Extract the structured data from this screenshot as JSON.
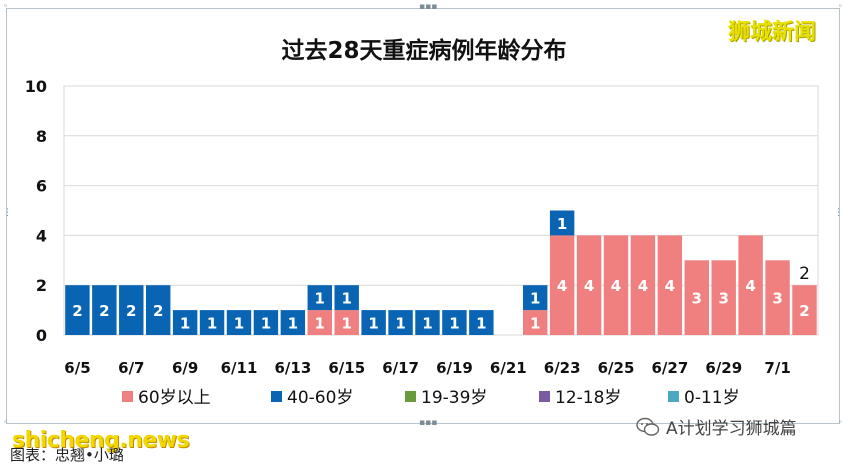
{
  "chart_data": {
    "type": "bar",
    "stacked": true,
    "title": "过去28天重症病例年龄分布",
    "categories": [
      "6/5",
      "6/6",
      "6/7",
      "6/8",
      "6/9",
      "6/10",
      "6/11",
      "6/12",
      "6/13",
      "6/14",
      "6/15",
      "6/16",
      "6/17",
      "6/18",
      "6/19",
      "6/20",
      "6/21",
      "6/22",
      "6/23",
      "6/24",
      "6/25",
      "6/26",
      "6/27",
      "6/28",
      "6/29",
      "6/30",
      "7/1",
      "7/2"
    ],
    "tick_labels": [
      "6/5",
      "6/7",
      "6/9",
      "6/11",
      "6/13",
      "6/15",
      "6/17",
      "6/19",
      "6/21",
      "6/23",
      "6/25",
      "6/27",
      "6/29",
      "7/1"
    ],
    "ylim": [
      0,
      10
    ],
    "yticks": [
      0,
      2,
      4,
      6,
      8,
      10
    ],
    "grid": true,
    "legend_position": "bottom",
    "series": [
      {
        "name": "60岁以上",
        "color": "#f08080",
        "values": [
          0,
          0,
          0,
          0,
          0,
          0,
          0,
          0,
          0,
          1,
          1,
          0,
          0,
          0,
          0,
          0,
          0,
          1,
          4,
          4,
          4,
          4,
          4,
          3,
          3,
          4,
          3,
          2
        ]
      },
      {
        "name": "40-60岁",
        "color": "#0a64b4",
        "values": [
          2,
          2,
          2,
          2,
          1,
          1,
          1,
          1,
          1,
          1,
          1,
          1,
          1,
          1,
          1,
          1,
          0,
          1,
          1,
          0,
          0,
          0,
          0,
          0,
          0,
          0,
          0,
          0
        ]
      },
      {
        "name": "19-39岁",
        "color": "#6a9a3a",
        "values": [
          0,
          0,
          0,
          0,
          0,
          0,
          0,
          0,
          0,
          0,
          0,
          0,
          0,
          0,
          0,
          0,
          0,
          0,
          0,
          0,
          0,
          0,
          0,
          0,
          0,
          0,
          0,
          0
        ]
      },
      {
        "name": "12-18岁",
        "color": "#7a5aa0",
        "values": [
          0,
          0,
          0,
          0,
          0,
          0,
          0,
          0,
          0,
          0,
          0,
          0,
          0,
          0,
          0,
          0,
          0,
          0,
          0,
          0,
          0,
          0,
          0,
          0,
          0,
          0,
          0,
          0
        ]
      },
      {
        "name": "0-11岁",
        "color": "#4aa8c0",
        "values": [
          0,
          0,
          0,
          0,
          0,
          0,
          0,
          0,
          0,
          0,
          0,
          0,
          0,
          0,
          0,
          0,
          0,
          0,
          0,
          0,
          0,
          0,
          0,
          0,
          0,
          0,
          0,
          0
        ]
      }
    ],
    "total_label_indices": [
      27
    ]
  },
  "watermark_top": "狮城新闻",
  "watermark_bottom": "shicheng.news",
  "caption": "图表：忠翘•小璐",
  "wechat": {
    "label": "A计划学习狮城篇",
    "icon": "wechat-icon"
  }
}
